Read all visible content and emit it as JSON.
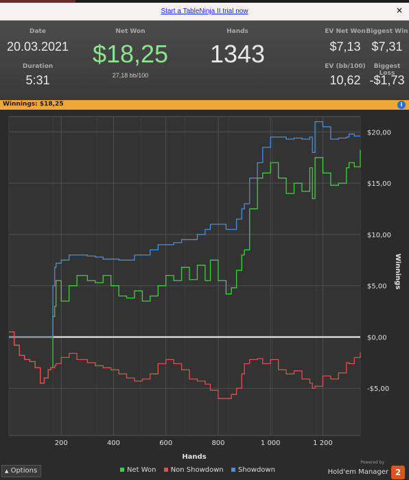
{
  "banner": {
    "link_text": "Start a TableNinja II trial now",
    "close": "×"
  },
  "stats": {
    "date_label": "Date",
    "date": "20.03.2021",
    "duration_label": "Duration",
    "duration": "5:31",
    "net_won_label": "Net Won",
    "net_won": "$18,25",
    "bb100": "27,18 bb/100",
    "hands_label": "Hands",
    "hands": "1343",
    "ev_net_won_label": "EV Net Won",
    "ev_net_won": "$7,13",
    "biggest_win_label": "Biggest Win",
    "biggest_win": "$7,31",
    "ev_bb100_label": "EV (bb/100)",
    "ev_bb100": "10,62",
    "biggest_loss_label": "Biggest Loss",
    "biggest_loss": "-$1,73"
  },
  "winnings_bar": {
    "text": "Winnings: $18,25",
    "info_icon": "i"
  },
  "colors": {
    "net_won": "#3fcf3f",
    "non_showdown": "#d9534f",
    "showdown": "#4a90d9",
    "accent": "#f2a53a"
  },
  "chart_data": {
    "type": "line",
    "xlabel": "Hands",
    "ylabel": "Winnings",
    "xlim": [
      0,
      1343
    ],
    "ylim": [
      -9.6,
      21.5
    ],
    "x_ticks": [
      200,
      400,
      600,
      800,
      1000,
      1200
    ],
    "x_tick_labels": [
      "200",
      "400",
      "600",
      "800",
      "1 000",
      "1 200"
    ],
    "y_ticks": [
      20,
      15,
      10,
      5,
      0,
      -5
    ],
    "y_tick_labels": [
      "$20,00",
      "$15,00",
      "$10,00",
      "$5,00",
      "$0,00",
      "-$5,00"
    ],
    "grid": true,
    "series": [
      {
        "name": "Net Won",
        "x": [
          0,
          20,
          40,
          60,
          80,
          100,
          120,
          135,
          150,
          160,
          168,
          175,
          180,
          200,
          230,
          260,
          300,
          330,
          360,
          390,
          420,
          450,
          480,
          510,
          540,
          570,
          600,
          630,
          660,
          690,
          720,
          750,
          770,
          800,
          830,
          850,
          870,
          890,
          900,
          920,
          950,
          970,
          1000,
          1030,
          1060,
          1090,
          1120,
          1150,
          1160,
          1170,
          1200,
          1230,
          1260,
          1290,
          1300,
          1320,
          1343
        ],
        "values": [
          0.5,
          -0.8,
          -1.8,
          -2.2,
          -2.4,
          -3.0,
          -4.5,
          -4.0,
          -3.2,
          -3.0,
          2.0,
          3.0,
          5.5,
          3.5,
          5.0,
          6.0,
          5.5,
          5.3,
          6.0,
          5.0,
          4.0,
          3.8,
          4.5,
          3.5,
          4.0,
          5.0,
          6.0,
          5.5,
          6.8,
          5.6,
          7.0,
          5.5,
          7.5,
          5.5,
          4.2,
          4.8,
          6.5,
          8.0,
          8.5,
          12.5,
          15.5,
          16.0,
          17.0,
          15.5,
          14.0,
          15.0,
          14.2,
          16.5,
          13.5,
          17.5,
          16.0,
          14.8,
          15.0,
          16.5,
          17.0,
          16.6,
          18.25
        ]
      },
      {
        "name": "Non Showdown",
        "x": [
          0,
          20,
          40,
          60,
          80,
          100,
          120,
          135,
          150,
          160,
          168,
          175,
          180,
          200,
          230,
          260,
          300,
          330,
          360,
          390,
          420,
          450,
          480,
          510,
          540,
          570,
          600,
          630,
          660,
          690,
          720,
          750,
          770,
          800,
          830,
          850,
          870,
          890,
          900,
          920,
          950,
          970,
          1000,
          1030,
          1060,
          1090,
          1120,
          1150,
          1160,
          1170,
          1200,
          1230,
          1260,
          1290,
          1300,
          1320,
          1343
        ],
        "values": [
          0.5,
          -0.8,
          -1.8,
          -2.2,
          -2.4,
          -3.0,
          -4.5,
          -4.0,
          -3.2,
          -3.0,
          -3.0,
          -2.8,
          -2.6,
          -2.0,
          -1.6,
          -2.2,
          -2.5,
          -2.8,
          -3.0,
          -3.2,
          -3.6,
          -4.0,
          -4.3,
          -4.1,
          -3.6,
          -2.6,
          -2.2,
          -2.6,
          -3.2,
          -4.1,
          -4.3,
          -4.6,
          -5.2,
          -6.0,
          -6.0,
          -5.6,
          -5.0,
          -3.6,
          -2.6,
          -2.2,
          -2.1,
          -2.6,
          -2.2,
          -3.2,
          -3.6,
          -3.3,
          -4.1,
          -4.5,
          -5.0,
          -4.8,
          -3.8,
          -4.1,
          -3.5,
          -2.5,
          -2.6,
          -2.0,
          -1.5
        ]
      },
      {
        "name": "Showdown",
        "x": [
          0,
          20,
          40,
          60,
          80,
          100,
          120,
          135,
          150,
          160,
          168,
          175,
          180,
          200,
          230,
          260,
          300,
          330,
          360,
          390,
          420,
          450,
          480,
          510,
          540,
          570,
          600,
          630,
          660,
          690,
          720,
          750,
          770,
          800,
          830,
          850,
          870,
          890,
          900,
          920,
          950,
          970,
          1000,
          1030,
          1060,
          1090,
          1120,
          1150,
          1160,
          1170,
          1200,
          1230,
          1260,
          1290,
          1300,
          1320,
          1343
        ],
        "values": [
          0,
          0,
          0,
          0,
          0,
          0,
          0,
          0,
          0,
          0,
          5.0,
          6.8,
          7.2,
          7.5,
          8.0,
          8.0,
          7.9,
          7.8,
          7.6,
          7.6,
          7.5,
          7.5,
          8.0,
          8.0,
          8.5,
          9.0,
          9.0,
          9.2,
          9.5,
          9.5,
          10.0,
          10.5,
          11.0,
          11.0,
          10.5,
          10.5,
          11.5,
          12.5,
          13.0,
          15.5,
          17.0,
          18.5,
          19.5,
          19.5,
          19.3,
          19.4,
          19.3,
          19.5,
          18.0,
          21.0,
          20.5,
          19.3,
          19.4,
          19.5,
          19.8,
          19.6,
          19.6
        ]
      }
    ]
  },
  "footer": {
    "options_label": "Options",
    "legend": [
      "Net Won",
      "Non Showdown",
      "Showdown"
    ],
    "powered_by": "Powered by",
    "product": "Hold'em Manager",
    "logo": "2"
  }
}
